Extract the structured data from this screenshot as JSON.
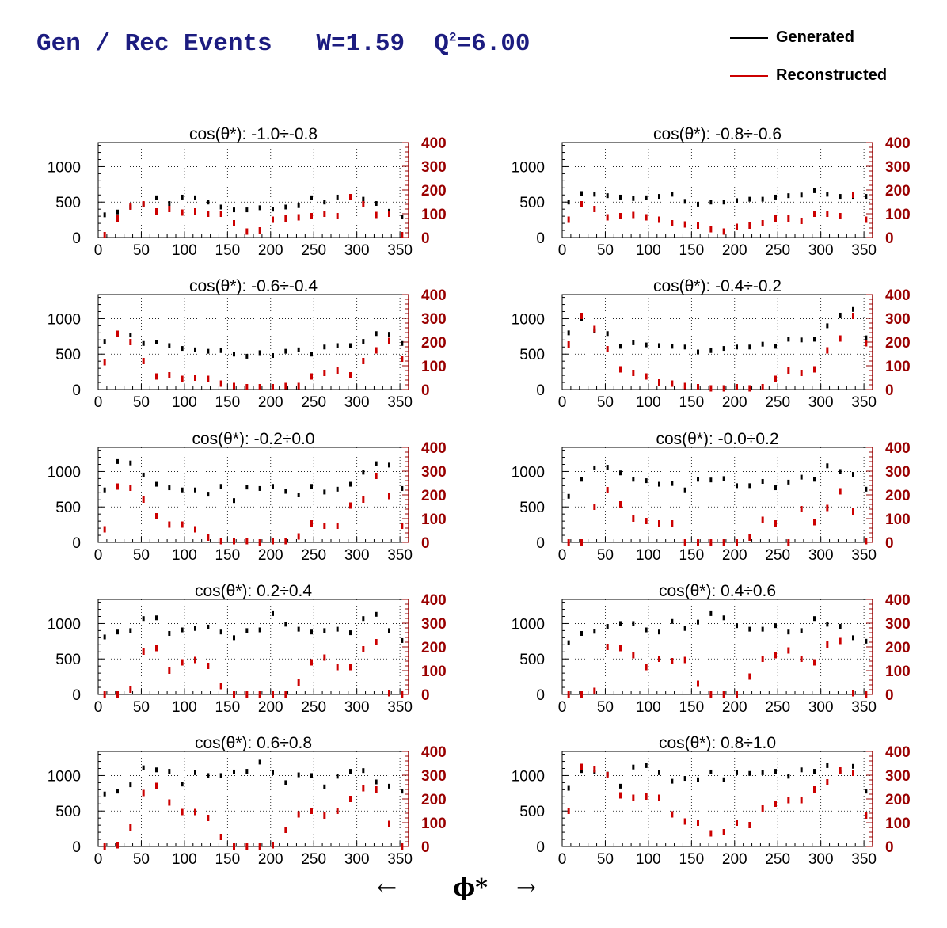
{
  "header": {
    "title_main": "Gen / Rec Events   W=1.59  Q",
    "title_sup": "2",
    "title_tail": "=6.00"
  },
  "legend": {
    "generated": {
      "label": "Generated",
      "color": "#000000"
    },
    "reconstructed": {
      "label": "Reconstructed",
      "color": "#cc0000"
    }
  },
  "footer": {
    "left_arrow": "←",
    "label": "ϕ*",
    "right_arrow": "→"
  },
  "axes": {
    "x_ticks": [
      0,
      50,
      100,
      150,
      200,
      250,
      300,
      350
    ],
    "y_left_ticks": [
      0,
      500,
      1000
    ],
    "y_right_ticks": [
      0,
      100,
      200,
      300,
      400
    ],
    "xlim": [
      0,
      360
    ],
    "y_left_lim": [
      0,
      1340
    ],
    "y_right_lim": [
      0,
      400
    ],
    "grid": true,
    "right_axis_color": "#990000"
  },
  "chart_data": [
    {
      "type": "scatter",
      "title": "cos(θ*): -1.0÷-0.8",
      "x": [
        7.5,
        22.5,
        37.5,
        52.5,
        67.5,
        82.5,
        97.5,
        112.5,
        127.5,
        142.5,
        157.5,
        172.5,
        187.5,
        202.5,
        217.5,
        232.5,
        247.5,
        262.5,
        277.5,
        292.5,
        307.5,
        322.5,
        337.5,
        352.5
      ],
      "series": [
        {
          "name": "Generated",
          "values": [
            320,
            360,
            430,
            470,
            560,
            480,
            570,
            560,
            500,
            430,
            390,
            390,
            420,
            400,
            430,
            450,
            560,
            500,
            570,
            560,
            540,
            480,
            370,
            290
          ]
        },
        {
          "name": "Reconstructed",
          "values": [
            10,
            80,
            130,
            140,
            110,
            120,
            105,
            110,
            100,
            100,
            60,
            25,
            30,
            75,
            80,
            85,
            90,
            100,
            90,
            170,
            140,
            95,
            100,
            10
          ]
        }
      ]
    },
    {
      "type": "scatter",
      "title": "cos(θ*): -0.8÷-0.6",
      "x": [
        7.5,
        22.5,
        37.5,
        52.5,
        67.5,
        82.5,
        97.5,
        112.5,
        127.5,
        142.5,
        157.5,
        172.5,
        187.5,
        202.5,
        217.5,
        232.5,
        247.5,
        262.5,
        277.5,
        292.5,
        307.5,
        322.5,
        337.5,
        352.5
      ],
      "series": [
        {
          "name": "Generated",
          "values": [
            500,
            620,
            610,
            590,
            570,
            550,
            560,
            580,
            610,
            510,
            470,
            500,
            500,
            520,
            540,
            540,
            570,
            590,
            600,
            660,
            610,
            580,
            580,
            580
          ]
        },
        {
          "name": "Reconstructed",
          "values": [
            75,
            140,
            120,
            85,
            90,
            95,
            85,
            75,
            60,
            55,
            50,
            35,
            25,
            45,
            50,
            60,
            80,
            80,
            70,
            100,
            100,
            90,
            180,
            75
          ]
        }
      ]
    },
    {
      "type": "scatter",
      "title": "cos(θ*): -0.6÷-0.4",
      "x": [
        7.5,
        22.5,
        37.5,
        52.5,
        67.5,
        82.5,
        97.5,
        112.5,
        127.5,
        142.5,
        157.5,
        172.5,
        187.5,
        202.5,
        217.5,
        232.5,
        247.5,
        262.5,
        277.5,
        292.5,
        307.5,
        322.5,
        337.5,
        352.5
      ],
      "series": [
        {
          "name": "Generated",
          "values": [
            680,
            790,
            770,
            650,
            670,
            620,
            580,
            560,
            540,
            550,
            500,
            470,
            520,
            480,
            540,
            560,
            500,
            600,
            620,
            620,
            680,
            790,
            780,
            650
          ]
        },
        {
          "name": "Reconstructed",
          "values": [
            115,
            235,
            200,
            120,
            55,
            60,
            45,
            50,
            45,
            25,
            15,
            10,
            10,
            10,
            15,
            15,
            55,
            70,
            80,
            60,
            120,
            165,
            205,
            130
          ]
        }
      ]
    },
    {
      "type": "scatter",
      "title": "cos(θ*): -0.4÷-0.2",
      "x": [
        7.5,
        22.5,
        37.5,
        52.5,
        67.5,
        82.5,
        97.5,
        112.5,
        127.5,
        142.5,
        157.5,
        172.5,
        187.5,
        202.5,
        217.5,
        232.5,
        247.5,
        262.5,
        277.5,
        292.5,
        307.5,
        322.5,
        337.5,
        352.5
      ],
      "series": [
        {
          "name": "Generated",
          "values": [
            800,
            1000,
            830,
            790,
            610,
            660,
            630,
            620,
            610,
            600,
            530,
            550,
            580,
            600,
            600,
            640,
            610,
            710,
            700,
            710,
            900,
            1050,
            1130,
            730
          ]
        },
        {
          "name": "Reconstructed",
          "values": [
            190,
            310,
            255,
            170,
            85,
            70,
            55,
            30,
            25,
            15,
            10,
            5,
            5,
            10,
            5,
            10,
            45,
            80,
            70,
            85,
            165,
            215,
            310,
            195
          ]
        }
      ]
    },
    {
      "type": "scatter",
      "title": "cos(θ*): -0.2÷0.0",
      "x": [
        7.5,
        22.5,
        37.5,
        52.5,
        67.5,
        82.5,
        97.5,
        112.5,
        127.5,
        142.5,
        157.5,
        172.5,
        187.5,
        202.5,
        217.5,
        232.5,
        247.5,
        262.5,
        277.5,
        292.5,
        307.5,
        322.5,
        337.5,
        352.5
      ],
      "series": [
        {
          "name": "Generated",
          "values": [
            740,
            1140,
            1120,
            950,
            820,
            770,
            740,
            740,
            680,
            790,
            590,
            780,
            760,
            790,
            720,
            670,
            790,
            710,
            750,
            820,
            990,
            1110,
            1090,
            760
          ]
        },
        {
          "name": "Reconstructed",
          "values": [
            55,
            235,
            230,
            180,
            110,
            75,
            75,
            55,
            20,
            5,
            5,
            5,
            0,
            5,
            5,
            25,
            80,
            70,
            70,
            155,
            180,
            280,
            195,
            70
          ]
        }
      ]
    },
    {
      "type": "scatter",
      "title": "cos(θ*): -0.0÷0.2",
      "x": [
        7.5,
        22.5,
        37.5,
        52.5,
        67.5,
        82.5,
        97.5,
        112.5,
        127.5,
        142.5,
        157.5,
        172.5,
        187.5,
        202.5,
        217.5,
        232.5,
        247.5,
        262.5,
        277.5,
        292.5,
        307.5,
        322.5,
        337.5,
        352.5
      ],
      "series": [
        {
          "name": "Generated",
          "values": [
            650,
            890,
            1050,
            1060,
            980,
            890,
            870,
            820,
            830,
            740,
            890,
            880,
            900,
            800,
            800,
            860,
            770,
            850,
            920,
            890,
            1080,
            1000,
            960,
            750
          ]
        },
        {
          "name": "Reconstructed",
          "values": [
            0,
            0,
            150,
            220,
            160,
            100,
            90,
            80,
            80,
            0,
            0,
            0,
            0,
            0,
            20,
            95,
            80,
            0,
            140,
            85,
            145,
            215,
            130,
            5
          ]
        }
      ]
    },
    {
      "type": "scatter",
      "title": "cos(θ*): 0.2÷0.4",
      "x": [
        7.5,
        22.5,
        37.5,
        52.5,
        67.5,
        82.5,
        97.5,
        112.5,
        127.5,
        142.5,
        157.5,
        172.5,
        187.5,
        202.5,
        217.5,
        232.5,
        247.5,
        262.5,
        277.5,
        292.5,
        307.5,
        322.5,
        337.5,
        352.5
      ],
      "series": [
        {
          "name": "Generated",
          "values": [
            810,
            880,
            900,
            1070,
            1080,
            860,
            910,
            930,
            950,
            880,
            800,
            900,
            910,
            1140,
            990,
            920,
            880,
            900,
            920,
            870,
            1070,
            1130,
            900,
            760
          ]
        },
        {
          "name": "Reconstructed",
          "values": [
            0,
            0,
            20,
            180,
            195,
            100,
            135,
            145,
            120,
            35,
            0,
            0,
            0,
            0,
            0,
            50,
            135,
            155,
            115,
            115,
            190,
            220,
            5,
            0
          ]
        }
      ]
    },
    {
      "type": "scatter",
      "title": "cos(θ*): 0.4÷0.6",
      "x": [
        7.5,
        22.5,
        37.5,
        52.5,
        67.5,
        82.5,
        97.5,
        112.5,
        127.5,
        142.5,
        157.5,
        172.5,
        187.5,
        202.5,
        217.5,
        232.5,
        247.5,
        262.5,
        277.5,
        292.5,
        307.5,
        322.5,
        337.5,
        352.5
      ],
      "series": [
        {
          "name": "Generated",
          "values": [
            730,
            860,
            890,
            960,
            1000,
            1000,
            910,
            880,
            1030,
            930,
            1020,
            1140,
            1080,
            970,
            920,
            920,
            970,
            880,
            900,
            1070,
            990,
            960,
            800,
            750
          ]
        },
        {
          "name": "Reconstructed",
          "values": [
            0,
            0,
            15,
            200,
            195,
            165,
            115,
            150,
            140,
            145,
            45,
            0,
            0,
            0,
            75,
            150,
            165,
            185,
            150,
            135,
            210,
            225,
            5,
            0
          ]
        }
      ]
    },
    {
      "type": "scatter",
      "title": "cos(θ*): 0.6÷0.8",
      "x": [
        7.5,
        22.5,
        37.5,
        52.5,
        67.5,
        82.5,
        97.5,
        112.5,
        127.5,
        142.5,
        157.5,
        172.5,
        187.5,
        202.5,
        217.5,
        232.5,
        247.5,
        262.5,
        277.5,
        292.5,
        307.5,
        322.5,
        337.5,
        352.5
      ],
      "series": [
        {
          "name": "Generated",
          "values": [
            740,
            780,
            870,
            1110,
            1080,
            1060,
            880,
            1040,
            1000,
            1000,
            1050,
            1060,
            1190,
            1040,
            900,
            1010,
            1000,
            840,
            990,
            1060,
            1070,
            910,
            850,
            780
          ]
        },
        {
          "name": "Reconstructed",
          "values": [
            0,
            5,
            80,
            225,
            255,
            185,
            145,
            145,
            120,
            40,
            0,
            0,
            0,
            5,
            70,
            135,
            150,
            130,
            150,
            200,
            245,
            240,
            95,
            0
          ]
        }
      ]
    },
    {
      "type": "scatter",
      "title": "cos(θ*): 0.8÷1.0",
      "x": [
        7.5,
        22.5,
        37.5,
        52.5,
        67.5,
        82.5,
        97.5,
        112.5,
        127.5,
        142.5,
        157.5,
        172.5,
        187.5,
        202.5,
        217.5,
        232.5,
        247.5,
        262.5,
        277.5,
        292.5,
        307.5,
        322.5,
        337.5,
        352.5
      ],
      "series": [
        {
          "name": "Generated",
          "values": [
            820,
            1070,
            1050,
            1020,
            850,
            1120,
            1140,
            1040,
            920,
            960,
            940,
            1050,
            940,
            1040,
            1030,
            1040,
            1060,
            990,
            1080,
            1060,
            1140,
            1050,
            1130,
            780
          ]
        },
        {
          "name": "Reconstructed",
          "values": [
            150,
            335,
            325,
            300,
            215,
            205,
            210,
            205,
            135,
            105,
            100,
            55,
            60,
            100,
            90,
            160,
            180,
            195,
            195,
            240,
            270,
            320,
            310,
            130
          ]
        }
      ]
    }
  ]
}
